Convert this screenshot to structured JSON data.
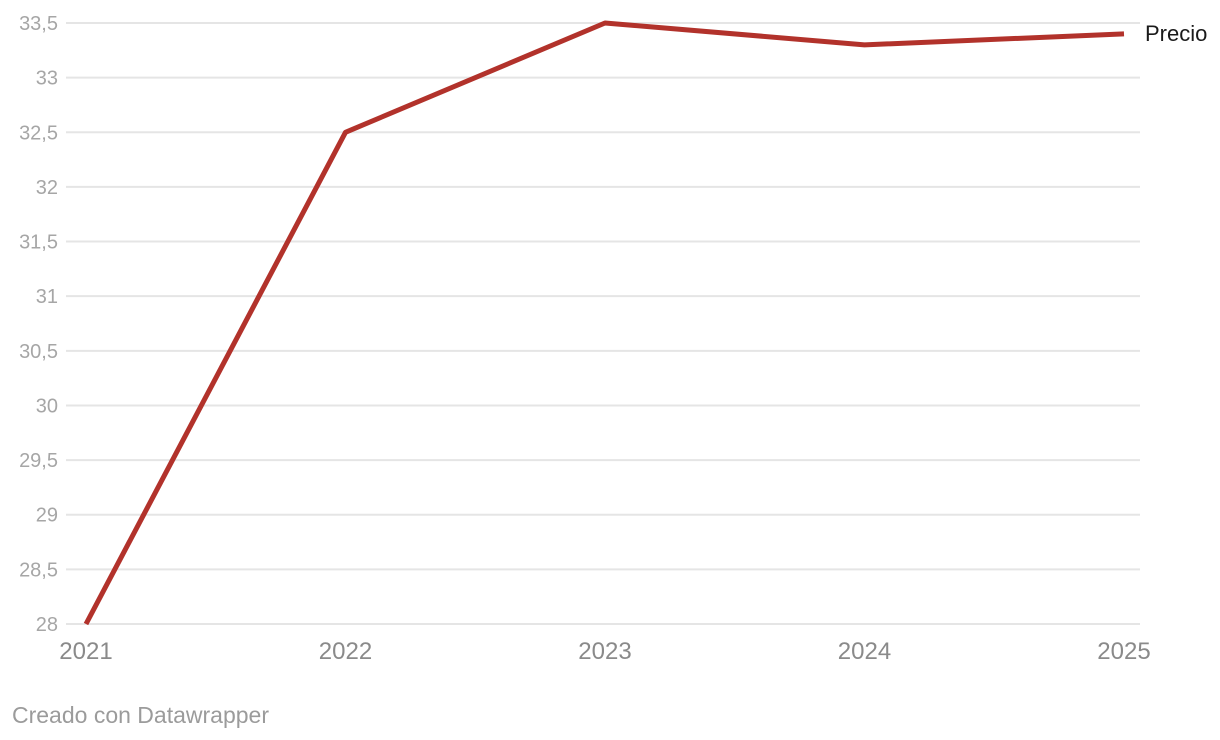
{
  "chart_data": {
    "type": "line",
    "x": [
      "2021",
      "2022",
      "2023",
      "2024",
      "2025"
    ],
    "series": [
      {
        "name": "Precio",
        "values": [
          28,
          32.5,
          33.5,
          33.3,
          33.4
        ]
      }
    ],
    "title": "",
    "xlabel": "",
    "ylabel": "",
    "ylim": [
      28,
      33.5
    ],
    "y_tick_step": 0.5,
    "y_ticks": [
      {
        "value": 28,
        "label": "28"
      },
      {
        "value": 28.5,
        "label": "28,5"
      },
      {
        "value": 29,
        "label": "29"
      },
      {
        "value": 29.5,
        "label": "29,5"
      },
      {
        "value": 30,
        "label": "30"
      },
      {
        "value": 30.5,
        "label": "30,5"
      },
      {
        "value": 31,
        "label": "31"
      },
      {
        "value": 31.5,
        "label": "31,5"
      },
      {
        "value": 32,
        "label": "32"
      },
      {
        "value": 32.5,
        "label": "32,5"
      },
      {
        "value": 33,
        "label": "33"
      },
      {
        "value": 33.5,
        "label": "33,5"
      }
    ],
    "grid": "horizontal-only",
    "decimal_separator": ",",
    "legend_position": "right-of-line-end"
  },
  "legend": {
    "label": "Precio"
  },
  "footer": {
    "attribution": "Creado con Datawrapper"
  },
  "colors": {
    "line": "#b2322b",
    "gridline": "#e5e5e5",
    "y_tick_text": "#a6a6a6",
    "x_tick_text": "#8a8a8a",
    "legend_text": "#1a1a1a",
    "footer_text": "#9b9b9b",
    "background": "#ffffff"
  }
}
